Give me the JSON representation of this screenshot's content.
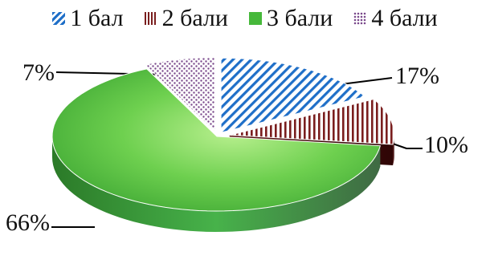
{
  "chart_data": {
    "type": "pie",
    "title": "",
    "legend_placement": "top",
    "categories": [
      "1 бал",
      "2 бали",
      "3 бали",
      "4 бали"
    ],
    "values": [
      17,
      10,
      66,
      7
    ],
    "labels": [
      "17%",
      "10%",
      "66%",
      "7%"
    ],
    "colors": {
      "1 бал": "#1f6fc8",
      "2 бали": "#7a1e1e",
      "3 бали": "#46b83a",
      "4 бали": "#7b4a8c"
    },
    "patterns": {
      "1 бал": "diagonal-stripes",
      "2 бали": "vertical-stripes",
      "3 бали": "solid",
      "4 бали": "dots"
    },
    "style": "3d-exploded"
  }
}
